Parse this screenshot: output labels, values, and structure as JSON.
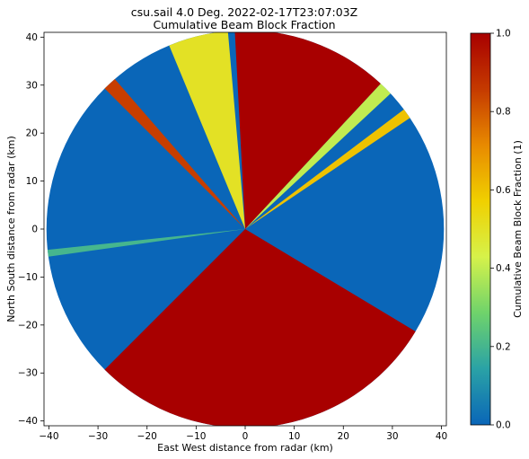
{
  "chart_data": {
    "type": "heatmap",
    "title_line1": "csu.sail 4.0 Deg. 2022-02-17T23:07:03Z",
    "title_line2": "Cumulative Beam Block Fraction",
    "xlabel": "East West distance from radar (km)",
    "ylabel": "North South distance from radar (km)",
    "colorbar_label": "Cumulative Beam Block Fraction (1)",
    "xlim": [
      -41,
      41
    ],
    "ylim": [
      -41,
      41
    ],
    "max_range_km": 40.5,
    "x_ticks": [
      -40,
      -30,
      -20,
      -10,
      0,
      10,
      20,
      30,
      40
    ],
    "y_ticks": [
      40,
      30,
      20,
      10,
      0,
      -10,
      -20,
      -30,
      -40
    ],
    "cbar_range": [
      0.0,
      1.0
    ],
    "cbar_ticks": [
      "1.0",
      "0.8",
      "0.6",
      "0.4",
      "0.2",
      "0.0"
    ],
    "colormap": [
      "#0a66b8",
      "#2aa2a6",
      "#6fd36b",
      "#d6f24a",
      "#f0d000",
      "#e88a00",
      "#c53a00",
      "#a80000"
    ],
    "background_value": 0.0,
    "sectors_deg_from_north": [
      {
        "from": -3,
        "to": 43,
        "value": 1.0
      },
      {
        "from": 121,
        "to": 225,
        "value": 1.0
      },
      {
        "from": -22.5,
        "to": -5,
        "value": 0.5
      },
      {
        "from": -45,
        "to": -41,
        "value": 0.85
      },
      {
        "from": 43,
        "to": 47,
        "value": 0.4
      },
      {
        "from": 53,
        "to": 56,
        "value": 0.6
      },
      {
        "from": 262,
        "to": 264,
        "value": 0.2
      }
    ]
  }
}
